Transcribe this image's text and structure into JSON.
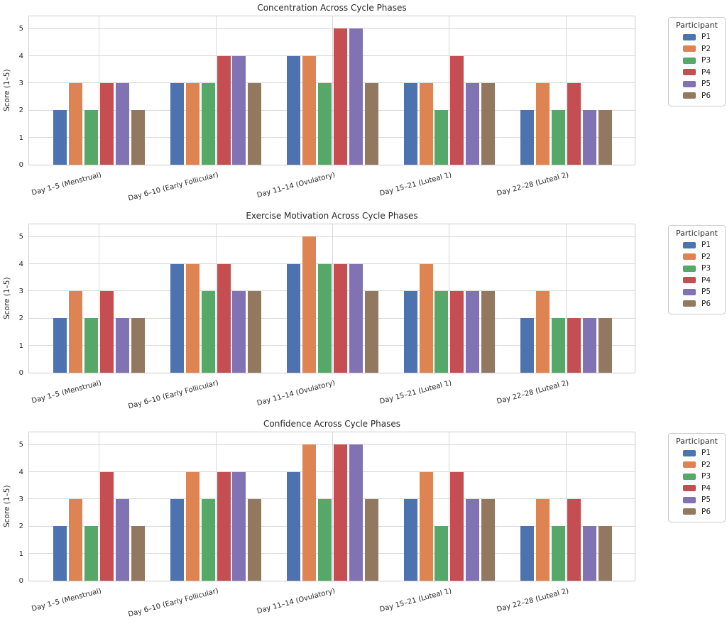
{
  "chart_data": [
    {
      "type": "bar",
      "title": "Concentration Across Cycle Phases",
      "ylabel": "Score (1–5)",
      "ylim": [
        0,
        5.5
      ],
      "yticks": [
        0,
        1,
        2,
        3,
        4,
        5
      ],
      "grid": true,
      "legend_title": "Participant",
      "legend_position": "upper-right-outside",
      "categories": [
        "Day 1–5 (Menstrual)",
        "Day 6–10 (Early Follicular)",
        "Day 11–14 (Ovulatory)",
        "Day 15–21 (Luteal 1)",
        "Day 22–28 (Luteal 2)"
      ],
      "series": [
        {
          "name": "P1",
          "color": "#4C72B0",
          "values": [
            2,
            3,
            4,
            3,
            2
          ]
        },
        {
          "name": "P2",
          "color": "#DD8452",
          "values": [
            3,
            3,
            4,
            3,
            3
          ]
        },
        {
          "name": "P3",
          "color": "#55A868",
          "values": [
            2,
            3,
            3,
            2,
            2
          ]
        },
        {
          "name": "P4",
          "color": "#C44E52",
          "values": [
            3,
            4,
            5,
            4,
            3
          ]
        },
        {
          "name": "P5",
          "color": "#8172B3",
          "values": [
            3,
            4,
            5,
            3,
            2
          ]
        },
        {
          "name": "P6",
          "color": "#937860",
          "values": [
            2,
            3,
            3,
            3,
            2
          ]
        }
      ]
    },
    {
      "type": "bar",
      "title": "Exercise Motivation Across Cycle Phases",
      "ylabel": "Score (1–5)",
      "ylim": [
        0,
        5.5
      ],
      "yticks": [
        0,
        1,
        2,
        3,
        4,
        5
      ],
      "grid": true,
      "legend_title": "Participant",
      "legend_position": "upper-right-outside",
      "categories": [
        "Day 1–5 (Menstrual)",
        "Day 6–10 (Early Follicular)",
        "Day 11–14 (Ovulatory)",
        "Day 15–21 (Luteal 1)",
        "Day 22–28 (Luteal 2)"
      ],
      "series": [
        {
          "name": "P1",
          "color": "#4C72B0",
          "values": [
            2,
            4,
            4,
            3,
            2
          ]
        },
        {
          "name": "P2",
          "color": "#DD8452",
          "values": [
            3,
            4,
            5,
            4,
            3
          ]
        },
        {
          "name": "P3",
          "color": "#55A868",
          "values": [
            2,
            3,
            4,
            3,
            2
          ]
        },
        {
          "name": "P4",
          "color": "#C44E52",
          "values": [
            3,
            4,
            4,
            3,
            2
          ]
        },
        {
          "name": "P5",
          "color": "#8172B3",
          "values": [
            2,
            3,
            4,
            3,
            2
          ]
        },
        {
          "name": "P6",
          "color": "#937860",
          "values": [
            2,
            3,
            3,
            3,
            2
          ]
        }
      ]
    },
    {
      "type": "bar",
      "title": "Confidence Across Cycle Phases",
      "ylabel": "Score (1–5)",
      "ylim": [
        0,
        5.5
      ],
      "yticks": [
        0,
        1,
        2,
        3,
        4,
        5
      ],
      "grid": true,
      "legend_title": "Participant",
      "legend_position": "upper-right-outside",
      "categories": [
        "Day 1–5 (Menstrual)",
        "Day 6–10 (Early Follicular)",
        "Day 11–14 (Ovulatory)",
        "Day 15–21 (Luteal 1)",
        "Day 22–28 (Luteal 2)"
      ],
      "series": [
        {
          "name": "P1",
          "color": "#4C72B0",
          "values": [
            2,
            3,
            4,
            3,
            2
          ]
        },
        {
          "name": "P2",
          "color": "#DD8452",
          "values": [
            3,
            4,
            5,
            4,
            3
          ]
        },
        {
          "name": "P3",
          "color": "#55A868",
          "values": [
            2,
            3,
            3,
            2,
            2
          ]
        },
        {
          "name": "P4",
          "color": "#C44E52",
          "values": [
            4,
            4,
            5,
            4,
            3
          ]
        },
        {
          "name": "P5",
          "color": "#8172B3",
          "values": [
            3,
            4,
            5,
            3,
            2
          ]
        },
        {
          "name": "P6",
          "color": "#937860",
          "values": [
            2,
            3,
            3,
            3,
            2
          ]
        }
      ]
    }
  ]
}
